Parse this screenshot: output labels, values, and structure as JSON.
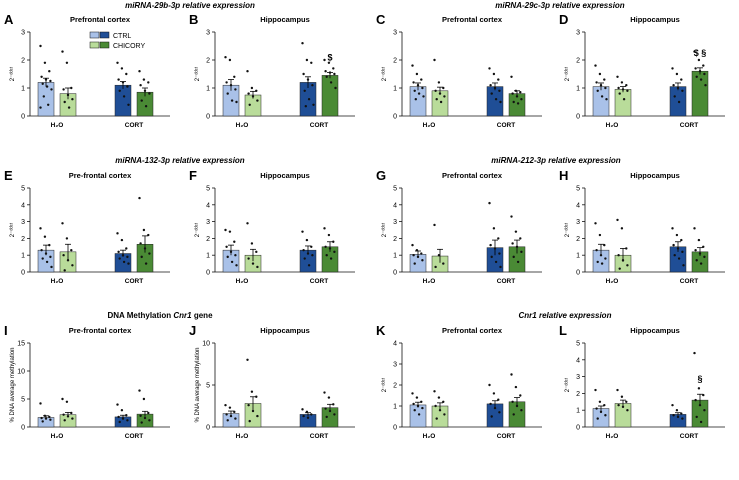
{
  "colors": {
    "ctrl_water": "#a9c1e8",
    "chicory_water": "#b9dc9a",
    "ctrl_cort": "#1f4e96",
    "chicory_cort": "#4a8a35",
    "axis": "#111111"
  },
  "legend": {
    "ctrl": "CTRL",
    "chicory": "CHICORY"
  },
  "groups": [
    "H₂O",
    "CORT"
  ],
  "headers": {
    "r1a": "miRNA-29b-3p relative expression",
    "r1b": "miRNA-29c-3p relative expression",
    "r2a": "miRNA-132-3p relative expression",
    "r2b": "miRNA-212-3p relative expression",
    "r3a_pre": "DNA Methylation ",
    "r3a_gene": "Cnr1",
    "r3a_post": " gene",
    "r3b_gene": "Cnr1",
    "r3b_post": " relative expression"
  },
  "chart_data": [
    {
      "type": "bar",
      "letter": "A",
      "title": "Prefrontal cortex",
      "ylabel": "2⁻ᵈᵈᶜᵗ",
      "ylim": [
        0,
        3
      ],
      "yticks": [
        0,
        1,
        2,
        3
      ],
      "categories": [
        "H₂O",
        "CORT"
      ],
      "series": [
        {
          "name": "CTRL",
          "values": [
            1.2,
            1.1
          ]
        },
        {
          "name": "CHICORY",
          "values": [
            0.8,
            0.85
          ]
        }
      ],
      "errors": [
        [
          0.15,
          0.13
        ],
        [
          0.2,
          0.15
        ]
      ],
      "points": [
        [
          2.5,
          1.9,
          1.6,
          1.4,
          1.3,
          1.25,
          1.15,
          1.05,
          0.95,
          0.7,
          0.4,
          0.3
        ],
        [
          2.3,
          1.9,
          1.0,
          0.95,
          0.75,
          0.6,
          0.5,
          0.3
        ],
        [
          1.9,
          1.7,
          1.5,
          1.3,
          1.2,
          1.05,
          0.9,
          0.7,
          0.4
        ],
        [
          1.6,
          1.3,
          1.2,
          1.1,
          0.9,
          0.8,
          0.55,
          0.35
        ]
      ],
      "annotations": []
    },
    {
      "type": "bar",
      "letter": "B",
      "title": "Hippocampus",
      "ylabel": "2⁻ᵈᵈᶜᵗ",
      "ylim": [
        0,
        3
      ],
      "yticks": [
        0,
        1,
        2,
        3
      ],
      "categories": [
        "H₂O",
        "CORT"
      ],
      "series": [
        {
          "name": "CTRL",
          "values": [
            1.1,
            1.2
          ]
        },
        {
          "name": "CHICORY",
          "values": [
            0.75,
            1.45
          ]
        }
      ],
      "errors": [
        [
          0.2,
          0.2
        ],
        [
          0.13,
          0.1
        ]
      ],
      "points": [
        [
          2.1,
          2.0,
          1.4,
          1.2,
          1.1,
          0.95,
          0.8,
          0.55,
          0.5
        ],
        [
          1.6,
          1.0,
          0.9,
          0.8,
          0.7,
          0.55,
          0.4
        ],
        [
          2.6,
          2.0,
          1.9,
          1.5,
          1.3,
          1.1,
          0.9,
          0.6,
          0.4,
          0.35
        ],
        [
          2.0,
          1.9,
          1.7,
          1.6,
          1.55,
          1.5,
          1.4,
          1.2,
          1.0
        ]
      ],
      "annotations": [
        {
          "series": 1,
          "group": 1,
          "text": "$"
        }
      ]
    },
    {
      "type": "bar",
      "letter": "C",
      "title": "Prefrontal cortex",
      "ylabel": "2⁻ᵈᵈᶜᵗ",
      "ylim": [
        0,
        3
      ],
      "yticks": [
        0,
        1,
        2,
        3
      ],
      "categories": [
        "H₂O",
        "CORT"
      ],
      "series": [
        {
          "name": "CTRL",
          "values": [
            1.05,
            1.05
          ]
        },
        {
          "name": "CHICORY",
          "values": [
            0.9,
            0.8
          ]
        }
      ],
      "errors": [
        [
          0.13,
          0.13
        ],
        [
          0.13,
          0.1
        ]
      ],
      "points": [
        [
          1.8,
          1.5,
          1.3,
          1.2,
          1.1,
          1.0,
          0.9,
          0.8,
          0.7,
          0.6
        ],
        [
          2.0,
          1.2,
          1.0,
          0.9,
          0.8,
          0.7,
          0.6,
          0.5
        ],
        [
          1.7,
          1.5,
          1.3,
          1.1,
          1.0,
          0.9,
          0.8,
          0.6,
          0.5
        ],
        [
          1.4,
          0.9,
          0.85,
          0.8,
          0.7,
          0.6,
          0.5,
          0.45
        ]
      ],
      "annotations": []
    },
    {
      "type": "bar",
      "letter": "D",
      "title": "Hippocampus",
      "ylabel": "2⁻ᵈᵈᶜᵗ",
      "ylim": [
        0,
        3
      ],
      "yticks": [
        0,
        1,
        2,
        3
      ],
      "categories": [
        "H₂O",
        "CORT"
      ],
      "series": [
        {
          "name": "CTRL",
          "values": [
            1.05,
            1.05
          ]
        },
        {
          "name": "CHICORY",
          "values": [
            0.95,
            1.6
          ]
        }
      ],
      "errors": [
        [
          0.13,
          0.13
        ],
        [
          0.1,
          0.12
        ]
      ],
      "points": [
        [
          1.8,
          1.5,
          1.3,
          1.2,
          1.1,
          1.0,
          0.9,
          0.7,
          0.6
        ],
        [
          1.4,
          1.2,
          1.1,
          1.0,
          0.95,
          0.9,
          0.8,
          0.6
        ],
        [
          1.7,
          1.5,
          1.3,
          1.1,
          1.0,
          0.9,
          0.7,
          0.5
        ],
        [
          2.3,
          2.0,
          1.8,
          1.7,
          1.6,
          1.5,
          1.4,
          1.3,
          1.1
        ]
      ],
      "annotations": [
        {
          "series": 1,
          "group": 1,
          "text": "$ §"
        }
      ]
    },
    {
      "type": "bar",
      "letter": "E",
      "title": "Pre-frontal cortex",
      "ylabel": "2⁻ᵈᵈᶜᵗ",
      "ylim": [
        0,
        5
      ],
      "yticks": [
        0,
        1,
        2,
        3,
        4,
        5
      ],
      "categories": [
        "H₂O",
        "CORT"
      ],
      "series": [
        {
          "name": "CTRL",
          "values": [
            1.3,
            1.1
          ]
        },
        {
          "name": "CHICORY",
          "values": [
            1.2,
            1.65
          ]
        }
      ],
      "errors": [
        [
          0.3,
          0.2
        ],
        [
          0.45,
          0.5
        ]
      ],
      "points": [
        [
          2.6,
          2.1,
          1.6,
          1.3,
          1.1,
          0.9,
          0.8,
          0.6,
          0.3
        ],
        [
          2.9,
          2.0,
          1.3,
          1.0,
          0.7,
          0.4,
          0.1
        ],
        [
          2.3,
          1.9,
          1.4,
          1.2,
          1.0,
          0.9,
          0.8,
          0.6,
          0.5
        ],
        [
          4.4,
          2.5,
          2.2,
          1.7,
          1.4,
          1.1,
          0.9,
          0.5
        ]
      ],
      "annotations": []
    },
    {
      "type": "bar",
      "letter": "F",
      "title": "Hippocampus",
      "ylabel": "2⁻ᵈᵈᶜᵗ",
      "ylim": [
        0,
        5
      ],
      "yticks": [
        0,
        1,
        2,
        3,
        4,
        5
      ],
      "categories": [
        "H₂O",
        "CORT"
      ],
      "series": [
        {
          "name": "CTRL",
          "values": [
            1.3,
            1.3
          ]
        },
        {
          "name": "CHICORY",
          "values": [
            1.0,
            1.5
          ]
        }
      ],
      "errors": [
        [
          0.3,
          0.25
        ],
        [
          0.35,
          0.3
        ]
      ],
      "points": [
        [
          2.5,
          2.4,
          1.8,
          1.5,
          1.2,
          1.0,
          0.9,
          0.6,
          0.4
        ],
        [
          2.9,
          1.7,
          1.2,
          0.8,
          0.5,
          0.3
        ],
        [
          2.4,
          1.9,
          1.5,
          1.3,
          1.1,
          1.0,
          0.8,
          0.4
        ],
        [
          2.6,
          2.2,
          1.8,
          1.5,
          1.4,
          1.2,
          1.0,
          0.8
        ]
      ],
      "annotations": []
    },
    {
      "type": "bar",
      "letter": "G",
      "title": "Prefrontal cortex",
      "ylabel": "2⁻ᵈᵈᶜᵗ",
      "ylim": [
        0,
        5
      ],
      "yticks": [
        0,
        1,
        2,
        3,
        4,
        5
      ],
      "categories": [
        "H₂O",
        "CORT"
      ],
      "series": [
        {
          "name": "CTRL",
          "values": [
            1.05,
            1.45
          ]
        },
        {
          "name": "CHICORY",
          "values": [
            0.95,
            1.5
          ]
        }
      ],
      "errors": [
        [
          0.2,
          0.45
        ],
        [
          0.4,
          0.4
        ]
      ],
      "points": [
        [
          1.6,
          1.3,
          1.1,
          1.0,
          0.9,
          0.7,
          0.5
        ],
        [
          2.8,
          1.0,
          0.5,
          0.3
        ],
        [
          4.1,
          2.6,
          2.0,
          1.6,
          1.4,
          1.1,
          0.9,
          0.6,
          0.3
        ],
        [
          3.3,
          2.4,
          2.0,
          1.7,
          1.5,
          1.2,
          0.9,
          0.6
        ]
      ],
      "annotations": []
    },
    {
      "type": "bar",
      "letter": "H",
      "title": "Hippocampus",
      "ylabel": "2⁻ᵈᵈᶜᵗ",
      "ylim": [
        0,
        5
      ],
      "yticks": [
        0,
        1,
        2,
        3,
        4,
        5
      ],
      "categories": [
        "H₂O",
        "CORT"
      ],
      "series": [
        {
          "name": "CTRL",
          "values": [
            1.3,
            1.5
          ]
        },
        {
          "name": "CHICORY",
          "values": [
            1.0,
            1.2
          ]
        }
      ],
      "errors": [
        [
          0.35,
          0.3
        ],
        [
          0.4,
          0.25
        ]
      ],
      "points": [
        [
          2.9,
          2.2,
          1.6,
          1.3,
          1.0,
          0.8,
          0.6,
          0.5
        ],
        [
          3.1,
          2.6,
          1.4,
          1.0,
          0.7,
          0.4,
          0.2
        ],
        [
          2.6,
          2.2,
          1.9,
          1.6,
          1.4,
          1.2,
          1.0,
          0.8,
          0.4
        ],
        [
          2.6,
          1.9,
          1.5,
          1.3,
          1.1,
          0.9,
          0.7,
          0.5
        ]
      ],
      "annotations": []
    },
    {
      "type": "bar",
      "letter": "I",
      "title": "Pre-frontal cortex",
      "ylabel": "% DNA average methylation",
      "ylim": [
        0,
        15
      ],
      "yticks": [
        0,
        5,
        10,
        15
      ],
      "categories": [
        "H₂O",
        "CORT"
      ],
      "series": [
        {
          "name": "CTRL",
          "values": [
            1.7,
            1.8
          ]
        },
        {
          "name": "CHICORY",
          "values": [
            2.2,
            2.3
          ]
        }
      ],
      "errors": [
        [
          0.3,
          0.3
        ],
        [
          0.4,
          0.5
        ]
      ],
      "points": [
        [
          4.2,
          2.0,
          1.8,
          1.6,
          1.5,
          1.3,
          1.0
        ],
        [
          5.0,
          4.5,
          2.5,
          2.2,
          1.9,
          1.5,
          1.2
        ],
        [
          4.0,
          3.0,
          2.1,
          1.8,
          1.5,
          1.2,
          0.9
        ],
        [
          6.5,
          5.0,
          2.5,
          2.0,
          1.6,
          1.2,
          0.8
        ]
      ],
      "annotations": []
    },
    {
      "type": "bar",
      "letter": "J",
      "title": "Hippocampus",
      "ylabel": "% DNA average methylation",
      "ylim": [
        0,
        10
      ],
      "yticks": [
        0,
        5,
        10
      ],
      "categories": [
        "H₂O",
        "CORT"
      ],
      "series": [
        {
          "name": "CTRL",
          "values": [
            1.6,
            1.5
          ]
        },
        {
          "name": "CHICORY",
          "values": [
            2.8,
            2.3
          ]
        }
      ],
      "errors": [
        [
          0.3,
          0.2
        ],
        [
          0.8,
          0.4
        ]
      ],
      "points": [
        [
          2.6,
          2.3,
          1.8,
          1.5,
          1.3,
          1.0,
          0.8
        ],
        [
          8.0,
          4.2,
          3.6,
          2.6,
          1.9,
          1.3,
          0.7
        ],
        [
          2.1,
          1.8,
          1.5,
          1.3,
          1.1
        ],
        [
          4.1,
          3.5,
          2.7,
          2.2,
          1.9,
          1.5,
          1.2
        ]
      ],
      "annotations": []
    },
    {
      "type": "bar",
      "letter": "K",
      "title": "Prefrontal cortex",
      "ylabel": "2⁻ᵈᵈᶜᵗ",
      "ylim": [
        0,
        4
      ],
      "yticks": [
        0,
        1,
        2,
        3,
        4
      ],
      "categories": [
        "H₂O",
        "CORT"
      ],
      "series": [
        {
          "name": "CTRL",
          "values": [
            1.05,
            1.1
          ]
        },
        {
          "name": "CHICORY",
          "values": [
            1.0,
            1.2
          ]
        }
      ],
      "errors": [
        [
          0.13,
          0.15
        ],
        [
          0.15,
          0.2
        ]
      ],
      "points": [
        [
          1.6,
          1.4,
          1.2,
          1.1,
          1.0,
          0.9,
          0.8,
          0.6
        ],
        [
          1.7,
          1.4,
          1.2,
          1.0,
          0.8,
          0.6,
          0.4
        ],
        [
          2.0,
          1.6,
          1.3,
          1.1,
          0.9,
          0.7,
          0.5
        ],
        [
          2.5,
          1.9,
          1.5,
          1.2,
          1.0,
          0.8,
          0.6
        ]
      ],
      "annotations": []
    },
    {
      "type": "bar",
      "letter": "L",
      "title": "Hippocampus",
      "ylabel": "2⁻ᵈᵈᶜᵗ",
      "ylim": [
        0,
        5
      ],
      "yticks": [
        0,
        1,
        2,
        3,
        4,
        5
      ],
      "categories": [
        "H₂O",
        "CORT"
      ],
      "series": [
        {
          "name": "CTRL",
          "values": [
            1.1,
            0.75
          ]
        },
        {
          "name": "CHICORY",
          "values": [
            1.4,
            1.6
          ]
        }
      ],
      "errors": [
        [
          0.15,
          0.1
        ],
        [
          0.2,
          0.35
        ]
      ],
      "points": [
        [
          2.2,
          1.5,
          1.3,
          1.1,
          0.9,
          0.7,
          0.5
        ],
        [
          2.2,
          1.8,
          1.5,
          1.3,
          1.2,
          1.0
        ],
        [
          1.3,
          1.0,
          0.8,
          0.7,
          0.6,
          0.5
        ],
        [
          4.4,
          2.3,
          1.9,
          1.6,
          1.3,
          1.0,
          0.6,
          0.3
        ]
      ],
      "annotations": [
        {
          "series": 1,
          "group": 1,
          "text": "§"
        }
      ]
    }
  ]
}
